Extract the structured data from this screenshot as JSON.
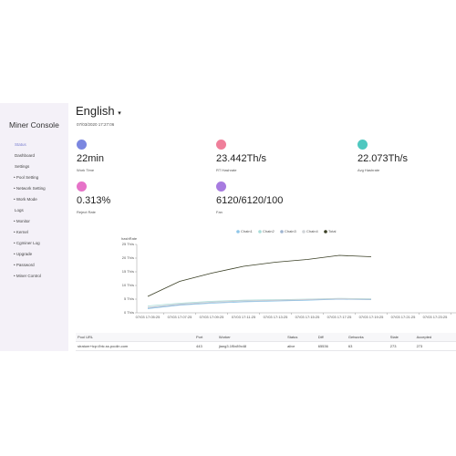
{
  "sidebar": {
    "title": "Miner Console",
    "menu": [
      "Status",
      "Dashboard",
      "Settings",
      "• Pool Setting",
      "• Network Setting",
      "• Work Mode",
      "Logs",
      "• Monitor",
      "• Kernel",
      "• Cgminer Log",
      "• Upgrade",
      "• Password",
      "• Miner Control"
    ]
  },
  "header": {
    "language": "English",
    "datetime": "07/03/2020 17:27:06"
  },
  "stats": [
    {
      "value": "22min",
      "label": "Work Time"
    },
    {
      "value": "23.442Th/s",
      "label": "RT Hashrate"
    },
    {
      "value": "22.073Th/s",
      "label": "Avg Hashrate"
    },
    {
      "value": "0.313%",
      "label": "Reject Rate"
    },
    {
      "value": "6120/6120/100",
      "label": "Fan"
    }
  ],
  "chart_data": {
    "type": "line",
    "y_label": "hashRate",
    "categories": [
      "07/03 17:05:25",
      "07/03 17:07:25",
      "07/03 17:09:25",
      "07/03 17:11:25",
      "07/03 17:13:25",
      "07/03 17:15:25",
      "07/03 17:17:25",
      "07/03 17:19:25",
      "07/03 17:21:25",
      "07/03 17:23:25"
    ],
    "series": [
      {
        "name": "Chain1",
        "color": "#8ec5e8",
        "values": [
          1.5,
          2.8,
          3.5,
          4.0,
          4.3,
          4.6,
          5.0,
          4.8,
          null,
          null
        ]
      },
      {
        "name": "Chain2",
        "color": "#a8dcd8",
        "values": [
          2.5,
          3.5,
          4.2,
          4.6,
          4.8,
          5.0,
          5.3,
          5.1,
          null,
          null
        ]
      },
      {
        "name": "Chain3",
        "color": "#9fb4d0",
        "values": [
          1.8,
          3.0,
          3.8,
          4.3,
          4.5,
          4.8,
          5.1,
          4.9,
          null,
          null
        ]
      },
      {
        "name": "Chain4",
        "color": "#d0d4d8",
        "values": [
          2.0,
          3.2,
          3.9,
          4.4,
          4.6,
          4.9,
          5.2,
          5.0,
          null,
          null
        ]
      },
      {
        "name": "Total",
        "color": "#3a3f25",
        "values": [
          6,
          11.5,
          14.5,
          17,
          18.5,
          19.5,
          21,
          20.5,
          null,
          null
        ]
      }
    ],
    "ylim": [
      0,
      25
    ],
    "yticks": [
      {
        "value": 0,
        "label": "0 Th/s"
      },
      {
        "value": 5,
        "label": "5 Th/s"
      },
      {
        "value": 10,
        "label": "10 Th/s"
      },
      {
        "value": 15,
        "label": "15 Th/s"
      },
      {
        "value": 20,
        "label": "20 Th/s"
      },
      {
        "value": 25,
        "label": "25 Th/s"
      }
    ],
    "grid": false,
    "legend": "top"
  },
  "table": {
    "headers": [
      "Pool URL",
      "Port",
      "Worker",
      "Status",
      "Diff",
      "Getworks",
      "Stale",
      "Accepted"
    ],
    "rows": [
      [
        "stratum+tcp://btc.ss.poolin.com",
        "443",
        "jiang3.1f5x89x48",
        "alive",
        "65536",
        "63",
        "273",
        "273"
      ]
    ]
  }
}
